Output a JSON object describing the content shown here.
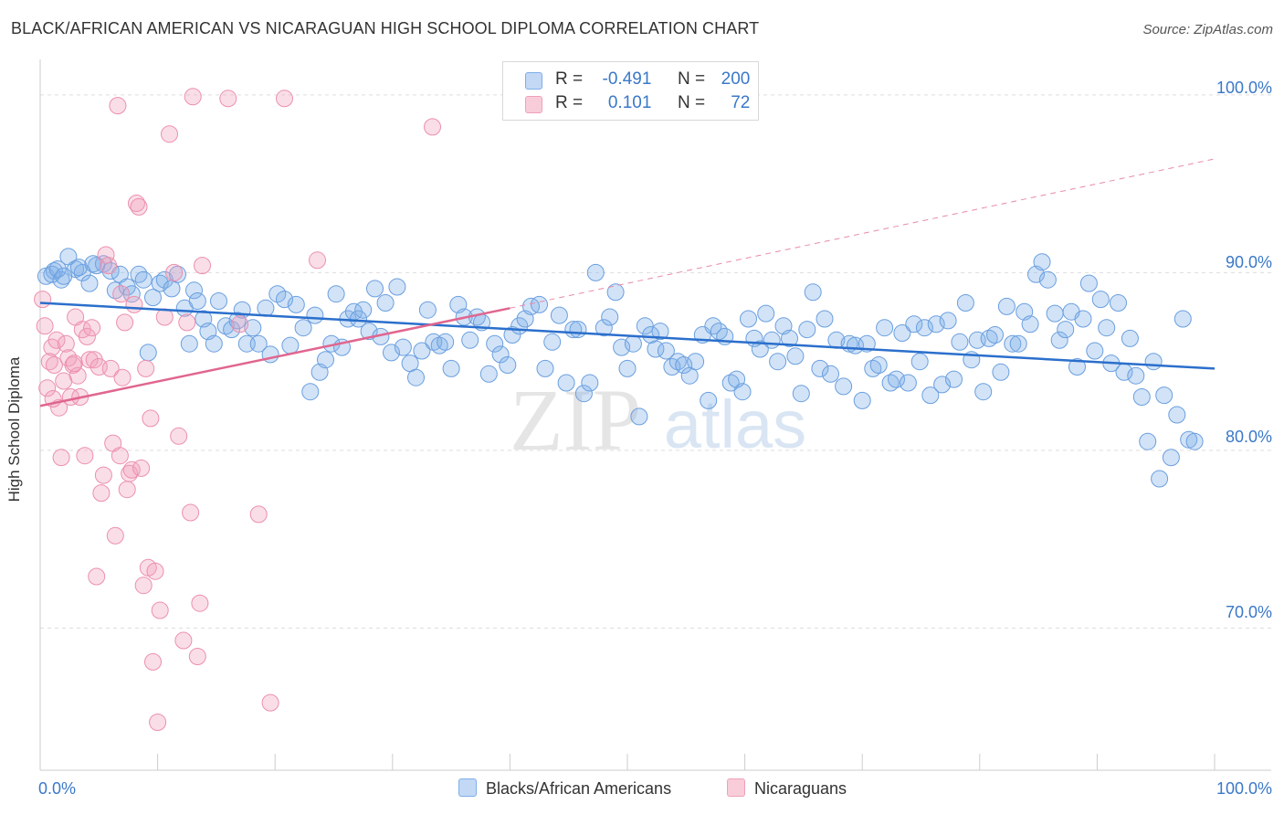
{
  "title": "BLACK/AFRICAN AMERICAN VS NICARAGUAN HIGH SCHOOL DIPLOMA CORRELATION CHART",
  "source": "Source: ZipAtlas.com",
  "watermark": {
    "zip": "ZIP",
    "atlas": "atlas"
  },
  "legend_stats": {
    "r_label": "R =",
    "n_label": "N =",
    "rows": [
      {
        "r": "-0.491",
        "n": "200",
        "color": "#7eaee8"
      },
      {
        "r": "0.101",
        "n": "72",
        "color": "#f1a0ba"
      }
    ]
  },
  "chart_data": {
    "type": "scatter",
    "title": "BLACK/AFRICAN AMERICAN VS NICARAGUAN HIGH SCHOOL DIPLOMA CORRELATION CHART",
    "xlabel": "",
    "ylabel": "High School Diploma",
    "xlim": [
      0,
      100
    ],
    "ylim": [
      62,
      102
    ],
    "x_tick_labels": [
      "0.0%",
      "100.0%"
    ],
    "y_ticks": [
      70,
      80,
      90,
      100
    ],
    "y_tick_labels": [
      "70.0%",
      "80.0%",
      "90.0%",
      "100.0%"
    ],
    "grid": true,
    "legend_position": "bottom-center",
    "series": [
      {
        "name": "Blacks/African Americans",
        "color": "#7eaee8",
        "trend": {
          "x": [
            0,
            100
          ],
          "y": [
            88.3,
            84.6
          ],
          "style": "solid"
        },
        "points": [
          [
            0.5,
            89.8
          ],
          [
            1.2,
            90.1
          ],
          [
            1.8,
            89.6
          ],
          [
            2.4,
            90.9
          ],
          [
            3.0,
            90.2
          ],
          [
            3.6,
            90.0
          ],
          [
            4.2,
            89.4
          ],
          [
            4.8,
            90.4
          ],
          [
            5.4,
            90.5
          ],
          [
            6.0,
            90.1
          ],
          [
            6.4,
            89.0
          ],
          [
            6.8,
            89.9
          ],
          [
            7.4,
            89.2
          ],
          [
            7.8,
            88.8
          ],
          [
            8.4,
            89.9
          ],
          [
            8.8,
            89.6
          ],
          [
            9.2,
            85.5
          ],
          [
            9.6,
            88.6
          ],
          [
            10.2,
            89.4
          ],
          [
            10.6,
            89.6
          ],
          [
            11.2,
            89.1
          ],
          [
            11.7,
            89.9
          ],
          [
            12.3,
            88.0
          ],
          [
            12.7,
            86.0
          ],
          [
            13.1,
            89.0
          ],
          [
            13.4,
            88.4
          ],
          [
            13.9,
            87.4
          ],
          [
            14.3,
            86.7
          ],
          [
            14.8,
            86.0
          ],
          [
            15.2,
            88.4
          ],
          [
            15.8,
            87.0
          ],
          [
            16.3,
            86.8
          ],
          [
            16.8,
            87.3
          ],
          [
            17.2,
            87.9
          ],
          [
            17.6,
            86.0
          ],
          [
            18.1,
            86.9
          ],
          [
            18.6,
            86.0
          ],
          [
            19.2,
            88.0
          ],
          [
            19.6,
            85.4
          ],
          [
            20.2,
            88.8
          ],
          [
            20.8,
            88.5
          ],
          [
            21.3,
            85.9
          ],
          [
            21.8,
            88.2
          ],
          [
            22.4,
            86.9
          ],
          [
            23.0,
            83.3
          ],
          [
            23.4,
            87.6
          ],
          [
            23.8,
            84.4
          ],
          [
            24.3,
            85.1
          ],
          [
            24.8,
            86.0
          ],
          [
            25.2,
            88.8
          ],
          [
            25.7,
            85.8
          ],
          [
            26.2,
            87.4
          ],
          [
            26.7,
            87.8
          ],
          [
            27.1,
            87.4
          ],
          [
            27.5,
            87.9
          ],
          [
            28.0,
            86.7
          ],
          [
            28.5,
            89.1
          ],
          [
            29.0,
            86.4
          ],
          [
            29.4,
            88.3
          ],
          [
            29.9,
            85.5
          ],
          [
            30.4,
            89.2
          ],
          [
            30.9,
            85.8
          ],
          [
            31.5,
            84.9
          ],
          [
            32.0,
            84.1
          ],
          [
            32.5,
            85.6
          ],
          [
            33.0,
            87.9
          ],
          [
            33.5,
            86.1
          ],
          [
            34.0,
            85.9
          ],
          [
            34.5,
            86.1
          ],
          [
            35.0,
            84.6
          ],
          [
            35.6,
            88.2
          ],
          [
            36.1,
            87.5
          ],
          [
            36.6,
            86.2
          ],
          [
            37.2,
            87.5
          ],
          [
            37.6,
            87.2
          ],
          [
            38.2,
            84.3
          ],
          [
            38.7,
            86.0
          ],
          [
            39.2,
            85.4
          ],
          [
            39.8,
            84.8
          ],
          [
            40.2,
            86.5
          ],
          [
            40.8,
            87.0
          ],
          [
            41.3,
            87.4
          ],
          [
            41.8,
            88.1
          ],
          [
            42.5,
            88.2
          ],
          [
            43.0,
            84.6
          ],
          [
            43.6,
            86.1
          ],
          [
            44.2,
            87.6
          ],
          [
            44.8,
            83.8
          ],
          [
            45.4,
            86.8
          ],
          [
            45.8,
            86.8
          ],
          [
            46.3,
            83.2
          ],
          [
            46.8,
            83.8
          ],
          [
            47.3,
            90.0
          ],
          [
            48.0,
            86.9
          ],
          [
            48.5,
            87.5
          ],
          [
            49.0,
            88.9
          ],
          [
            49.5,
            85.8
          ],
          [
            50.0,
            84.6
          ],
          [
            50.5,
            86.0
          ],
          [
            51.0,
            81.9
          ],
          [
            51.5,
            87.0
          ],
          [
            52.0,
            86.5
          ],
          [
            52.4,
            85.7
          ],
          [
            52.8,
            86.7
          ],
          [
            53.3,
            85.6
          ],
          [
            53.8,
            84.7
          ],
          [
            54.3,
            85.0
          ],
          [
            54.8,
            84.8
          ],
          [
            55.3,
            84.2
          ],
          [
            55.8,
            85.0
          ],
          [
            56.4,
            86.5
          ],
          [
            56.9,
            82.8
          ],
          [
            57.3,
            87.0
          ],
          [
            57.8,
            86.7
          ],
          [
            58.3,
            86.4
          ],
          [
            58.8,
            83.8
          ],
          [
            59.3,
            84.0
          ],
          [
            59.8,
            83.3
          ],
          [
            60.3,
            87.4
          ],
          [
            60.8,
            86.3
          ],
          [
            61.3,
            85.7
          ],
          [
            61.8,
            87.7
          ],
          [
            62.3,
            86.2
          ],
          [
            62.8,
            85.0
          ],
          [
            63.3,
            87.0
          ],
          [
            63.8,
            86.3
          ],
          [
            64.3,
            85.3
          ],
          [
            64.8,
            83.2
          ],
          [
            65.3,
            86.8
          ],
          [
            65.8,
            88.9
          ],
          [
            66.4,
            84.6
          ],
          [
            66.8,
            87.4
          ],
          [
            67.3,
            84.3
          ],
          [
            67.8,
            86.2
          ],
          [
            68.4,
            83.6
          ],
          [
            68.9,
            86.0
          ],
          [
            69.4,
            85.9
          ],
          [
            70.0,
            82.8
          ],
          [
            70.4,
            86.0
          ],
          [
            70.9,
            84.6
          ],
          [
            71.4,
            84.8
          ],
          [
            71.9,
            86.9
          ],
          [
            72.4,
            83.8
          ],
          [
            72.9,
            84.0
          ],
          [
            73.4,
            86.6
          ],
          [
            73.9,
            83.8
          ],
          [
            74.4,
            87.1
          ],
          [
            74.9,
            85.0
          ],
          [
            75.3,
            86.9
          ],
          [
            75.8,
            83.1
          ],
          [
            76.3,
            87.1
          ],
          [
            76.8,
            83.7
          ],
          [
            77.3,
            87.3
          ],
          [
            77.8,
            84.0
          ],
          [
            78.3,
            86.1
          ],
          [
            78.8,
            88.3
          ],
          [
            79.3,
            85.1
          ],
          [
            79.8,
            86.2
          ],
          [
            80.3,
            83.3
          ],
          [
            80.8,
            86.3
          ],
          [
            81.3,
            86.5
          ],
          [
            81.8,
            84.4
          ],
          [
            82.3,
            88.1
          ],
          [
            82.8,
            86.0
          ],
          [
            83.3,
            86.0
          ],
          [
            83.8,
            87.8
          ],
          [
            84.3,
            87.1
          ],
          [
            84.8,
            89.9
          ],
          [
            85.3,
            90.6
          ],
          [
            85.8,
            89.6
          ],
          [
            86.4,
            87.7
          ],
          [
            86.8,
            86.2
          ],
          [
            87.3,
            86.8
          ],
          [
            87.8,
            87.8
          ],
          [
            88.3,
            84.7
          ],
          [
            88.8,
            87.4
          ],
          [
            89.3,
            89.4
          ],
          [
            89.8,
            85.6
          ],
          [
            90.3,
            88.5
          ],
          [
            90.8,
            86.9
          ],
          [
            91.2,
            84.9
          ],
          [
            91.8,
            88.3
          ],
          [
            92.3,
            84.4
          ],
          [
            92.8,
            86.3
          ],
          [
            93.3,
            84.2
          ],
          [
            93.8,
            83.0
          ],
          [
            94.3,
            80.5
          ],
          [
            94.8,
            85.0
          ],
          [
            95.3,
            78.4
          ],
          [
            95.7,
            83.1
          ],
          [
            96.3,
            79.6
          ],
          [
            96.8,
            82.0
          ],
          [
            97.3,
            87.4
          ],
          [
            97.8,
            80.6
          ],
          [
            98.3,
            80.5
          ],
          [
            1.0,
            89.9
          ],
          [
            1.5,
            90.2
          ],
          [
            2.0,
            89.8
          ],
          [
            3.3,
            90.3
          ],
          [
            4.5,
            90.5
          ]
        ]
      },
      {
        "name": "Nicaraguans",
        "color": "#f1a0ba",
        "trend": {
          "x": [
            0,
            40
          ],
          "y": [
            82.5,
            88.0
          ],
          "style": "solid",
          "extended": {
            "x": [
              40,
              100
            ],
            "y": [
              88.0,
              96.4
            ],
            "style": "dashed"
          }
        },
        "points": [
          [
            0.2,
            88.5
          ],
          [
            0.4,
            87.0
          ],
          [
            0.6,
            83.5
          ],
          [
            0.8,
            85.0
          ],
          [
            1.0,
            85.8
          ],
          [
            1.2,
            84.8
          ],
          [
            1.4,
            86.2
          ],
          [
            1.6,
            82.4
          ],
          [
            1.8,
            79.6
          ],
          [
            2.0,
            83.9
          ],
          [
            2.2,
            86.0
          ],
          [
            2.4,
            85.2
          ],
          [
            2.6,
            83.0
          ],
          [
            2.8,
            84.8
          ],
          [
            3.0,
            87.5
          ],
          [
            3.2,
            84.2
          ],
          [
            3.4,
            83.0
          ],
          [
            3.6,
            86.8
          ],
          [
            3.8,
            79.7
          ],
          [
            4.0,
            86.4
          ],
          [
            4.2,
            85.1
          ],
          [
            4.4,
            86.9
          ],
          [
            4.6,
            85.1
          ],
          [
            4.8,
            72.9
          ],
          [
            5.0,
            84.7
          ],
          [
            5.2,
            77.6
          ],
          [
            5.4,
            78.6
          ],
          [
            5.6,
            91.0
          ],
          [
            5.8,
            90.4
          ],
          [
            6.0,
            84.6
          ],
          [
            6.2,
            80.4
          ],
          [
            6.4,
            75.2
          ],
          [
            6.6,
            99.4
          ],
          [
            6.8,
            79.7
          ],
          [
            7.0,
            84.1
          ],
          [
            7.2,
            87.2
          ],
          [
            7.4,
            77.8
          ],
          [
            7.6,
            78.7
          ],
          [
            7.8,
            78.9
          ],
          [
            8.0,
            88.2
          ],
          [
            8.2,
            93.9
          ],
          [
            8.4,
            93.7
          ],
          [
            8.6,
            79.0
          ],
          [
            8.8,
            72.4
          ],
          [
            9.0,
            84.6
          ],
          [
            9.2,
            73.4
          ],
          [
            9.4,
            81.8
          ],
          [
            9.6,
            68.1
          ],
          [
            9.8,
            73.2
          ],
          [
            10.0,
            64.7
          ],
          [
            10.2,
            71.0
          ],
          [
            10.6,
            87.5
          ],
          [
            11.0,
            97.8
          ],
          [
            11.4,
            90.0
          ],
          [
            11.8,
            80.8
          ],
          [
            12.2,
            69.3
          ],
          [
            12.5,
            87.2
          ],
          [
            12.8,
            76.5
          ],
          [
            13.0,
            99.9
          ],
          [
            13.4,
            68.4
          ],
          [
            13.6,
            71.4
          ],
          [
            13.8,
            90.4
          ],
          [
            16.0,
            99.8
          ],
          [
            17.0,
            87.1
          ],
          [
            18.6,
            76.4
          ],
          [
            19.6,
            65.8
          ],
          [
            20.8,
            99.8
          ],
          [
            23.6,
            90.7
          ],
          [
            33.4,
            98.2
          ],
          [
            1.1,
            82.9
          ],
          [
            2.9,
            84.9
          ],
          [
            6.9,
            88.8
          ]
        ]
      }
    ]
  }
}
